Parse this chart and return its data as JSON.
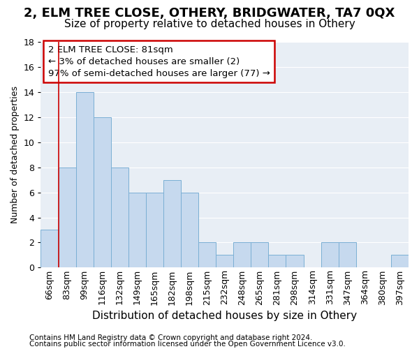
{
  "title": "2, ELM TREE CLOSE, OTHERY, BRIDGWATER, TA7 0QX",
  "subtitle": "Size of property relative to detached houses in Othery",
  "xlabel": "Distribution of detached houses by size in Othery",
  "ylabel": "Number of detached properties",
  "categories": [
    "66sqm",
    "83sqm",
    "99sqm",
    "116sqm",
    "132sqm",
    "149sqm",
    "165sqm",
    "182sqm",
    "198sqm",
    "215sqm",
    "232sqm",
    "248sqm",
    "265sqm",
    "281sqm",
    "298sqm",
    "314sqm",
    "331sqm",
    "347sqm",
    "364sqm",
    "380sqm",
    "397sqm"
  ],
  "values": [
    3,
    8,
    14,
    12,
    8,
    6,
    6,
    7,
    6,
    2,
    1,
    2,
    2,
    1,
    1,
    0,
    2,
    2,
    0,
    0,
    1
  ],
  "bar_color": "#c6d9ee",
  "bar_edgecolor": "#7aafd4",
  "ylim": [
    0,
    18
  ],
  "yticks": [
    0,
    2,
    4,
    6,
    8,
    10,
    12,
    14,
    16,
    18
  ],
  "annotation_title": "2 ELM TREE CLOSE: 81sqm",
  "annotation_line1": "← 3% of detached houses are smaller (2)",
  "annotation_line2": "97% of semi-detached houses are larger (77) →",
  "annotation_box_facecolor": "#ffffff",
  "annotation_box_edgecolor": "#cc0000",
  "footer1": "Contains HM Land Registry data © Crown copyright and database right 2024.",
  "footer2": "Contains public sector information licensed under the Open Government Licence v3.0.",
  "background_color": "#ffffff",
  "plot_bg_color": "#e8eef5",
  "grid_color": "#ffffff",
  "title_fontsize": 13,
  "subtitle_fontsize": 11,
  "ylabel_fontsize": 9,
  "xlabel_fontsize": 11,
  "tick_fontsize": 9,
  "footer_fontsize": 7.5,
  "ann_fontsize": 9.5
}
